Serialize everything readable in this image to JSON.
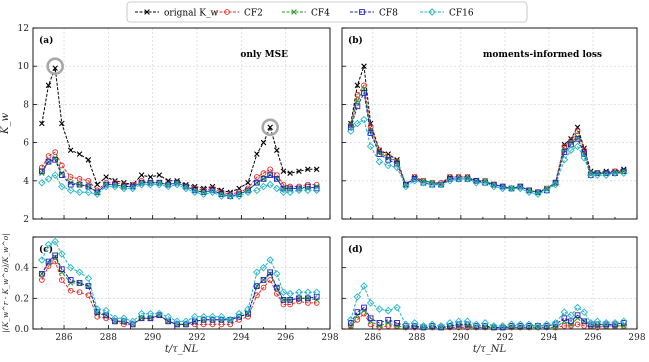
{
  "chart_data": {
    "type": "line",
    "x": [
      285.0,
      285.3,
      285.6,
      285.9,
      286.3,
      286.7,
      287.1,
      287.5,
      287.9,
      288.3,
      288.7,
      289.1,
      289.5,
      289.9,
      290.3,
      290.7,
      291.1,
      291.5,
      291.9,
      292.3,
      292.7,
      293.1,
      293.5,
      293.9,
      294.3,
      294.7,
      295.0,
      295.3,
      295.6,
      295.9,
      296.2,
      296.6,
      297.0,
      297.4
    ],
    "legend": {
      "placement": "top-center",
      "entries": [
        {
          "key": "orig",
          "label": "orignal K_w",
          "color": "#000000",
          "marker": "x"
        },
        {
          "key": "cf2",
          "label": "CF2",
          "color": "#e32b26",
          "marker": "o"
        },
        {
          "key": "cf4",
          "label": "CF4",
          "color": "#2a9a2a",
          "marker": "x"
        },
        {
          "key": "cf8",
          "label": "CF8",
          "color": "#1f1fbf",
          "marker": "s"
        },
        {
          "key": "cf16",
          "label": "CF16",
          "color": "#22b5c4",
          "marker": "D"
        }
      ]
    },
    "grid": true,
    "panels": [
      {
        "id": "a",
        "tag": "(a)",
        "annotation": "only MSE",
        "ylabel": "K_w",
        "ylim": [
          2,
          12
        ],
        "yticks": [
          2,
          4,
          6,
          8,
          10,
          12
        ],
        "xlim": [
          284.6,
          298
        ],
        "xticks": [],
        "series": {
          "orig": [
            7.0,
            9.0,
            9.9,
            7.0,
            5.6,
            5.4,
            5.1,
            3.8,
            4.2,
            4.0,
            3.9,
            3.8,
            4.3,
            4.2,
            4.3,
            4.0,
            4.0,
            3.8,
            3.7,
            3.6,
            3.7,
            3.5,
            3.4,
            3.6,
            3.9,
            5.4,
            6.0,
            6.8,
            5.6,
            4.5,
            4.4,
            4.5,
            4.6,
            4.6
          ],
          "cf2": [
            4.7,
            5.3,
            5.5,
            4.8,
            4.2,
            4.1,
            4.0,
            3.5,
            3.9,
            3.9,
            3.8,
            3.8,
            4.0,
            3.9,
            3.9,
            3.8,
            3.9,
            3.7,
            3.6,
            3.5,
            3.6,
            3.4,
            3.3,
            3.4,
            3.6,
            4.2,
            4.4,
            4.6,
            4.3,
            3.8,
            3.7,
            3.7,
            3.8,
            3.8
          ],
          "cf4": [
            4.4,
            5.0,
            5.2,
            4.4,
            3.9,
            3.8,
            3.7,
            3.4,
            3.8,
            3.8,
            3.7,
            3.7,
            3.9,
            3.9,
            3.9,
            3.8,
            3.9,
            3.7,
            3.5,
            3.4,
            3.5,
            3.3,
            3.2,
            3.3,
            3.5,
            3.9,
            4.1,
            4.3,
            4.1,
            3.6,
            3.6,
            3.6,
            3.6,
            3.7
          ],
          "cf8": [
            4.5,
            5.0,
            5.1,
            4.3,
            3.8,
            3.8,
            3.7,
            3.4,
            3.8,
            3.8,
            3.7,
            3.7,
            3.9,
            3.9,
            3.9,
            3.8,
            3.9,
            3.7,
            3.5,
            3.4,
            3.5,
            3.3,
            3.2,
            3.3,
            3.5,
            3.9,
            4.1,
            4.3,
            4.1,
            3.6,
            3.6,
            3.6,
            3.7,
            3.6
          ],
          "cf16": [
            3.9,
            4.1,
            4.3,
            3.7,
            3.5,
            3.4,
            3.4,
            3.3,
            3.7,
            3.7,
            3.6,
            3.6,
            3.8,
            3.8,
            3.8,
            3.7,
            3.8,
            3.6,
            3.4,
            3.3,
            3.4,
            3.2,
            3.2,
            3.2,
            3.4,
            3.5,
            3.7,
            3.8,
            3.6,
            3.4,
            3.4,
            3.5,
            3.5,
            3.5
          ]
        },
        "circles": [
          {
            "x": 285.6,
            "y": 10.0
          },
          {
            "x": 295.3,
            "y": 6.8
          }
        ]
      },
      {
        "id": "b",
        "tag": "(b)",
        "annotation": "moments-informed loss",
        "ylabel": "",
        "ylim": [
          2,
          12
        ],
        "yticks": [],
        "xlim": [
          284.6,
          298
        ],
        "xticks": [],
        "series": {
          "orig": [
            7.0,
            9.0,
            10.0,
            7.0,
            5.6,
            5.4,
            5.1,
            3.8,
            4.2,
            4.0,
            3.9,
            3.8,
            4.2,
            4.2,
            4.2,
            4.0,
            4.0,
            3.8,
            3.7,
            3.6,
            3.7,
            3.5,
            3.4,
            3.6,
            3.9,
            5.9,
            6.2,
            6.8,
            5.7,
            4.5,
            4.4,
            4.5,
            4.5,
            4.6
          ],
          "cf2": [
            6.9,
            8.5,
            9.0,
            6.8,
            5.6,
            5.3,
            5.0,
            3.8,
            4.2,
            4.0,
            3.9,
            3.9,
            4.2,
            4.2,
            4.2,
            4.0,
            4.0,
            3.8,
            3.7,
            3.6,
            3.7,
            3.5,
            3.4,
            3.6,
            3.9,
            5.8,
            6.1,
            6.6,
            5.6,
            4.4,
            4.4,
            4.4,
            4.5,
            4.5
          ],
          "cf4": [
            6.9,
            8.2,
            8.8,
            6.6,
            5.5,
            5.2,
            5.0,
            3.8,
            4.1,
            4.0,
            3.9,
            3.8,
            4.1,
            4.1,
            4.1,
            4.0,
            4.0,
            3.8,
            3.7,
            3.6,
            3.7,
            3.5,
            3.4,
            3.6,
            3.9,
            5.6,
            6.0,
            6.3,
            5.4,
            4.4,
            4.4,
            4.4,
            4.4,
            4.5
          ],
          "cf8": [
            6.8,
            7.9,
            8.6,
            6.5,
            5.4,
            5.1,
            4.9,
            3.8,
            4.1,
            3.9,
            3.8,
            3.8,
            4.1,
            4.1,
            4.1,
            4.0,
            3.9,
            3.8,
            3.7,
            3.6,
            3.7,
            3.5,
            3.4,
            3.5,
            3.9,
            5.5,
            5.9,
            6.2,
            5.4,
            4.3,
            4.4,
            4.4,
            4.4,
            4.5
          ],
          "cf16": [
            6.6,
            7.0,
            7.2,
            5.8,
            5.0,
            4.8,
            4.7,
            3.7,
            4.0,
            3.9,
            3.8,
            3.8,
            4.0,
            4.1,
            4.1,
            3.9,
            3.9,
            3.7,
            3.6,
            3.6,
            3.6,
            3.4,
            3.3,
            3.5,
            3.8,
            5.1,
            5.6,
            5.8,
            5.2,
            4.3,
            4.3,
            4.3,
            4.4,
            4.4
          ]
        },
        "circles": []
      },
      {
        "id": "c",
        "tag": "(c)",
        "ylabel": "|(K_w^r - K_w^o)/K_w^o|",
        "ylim": [
          0,
          0.6
        ],
        "yticks": [
          0.0,
          0.2,
          0.4
        ],
        "xlabel": "t/τ_NL",
        "xlim": [
          284.6,
          298
        ],
        "xticks": [
          286,
          288,
          290,
          292,
          294,
          296,
          298
        ],
        "series": {
          "cf2": [
            0.32,
            0.41,
            0.44,
            0.32,
            0.25,
            0.24,
            0.22,
            0.08,
            0.07,
            0.05,
            0.03,
            0.03,
            0.07,
            0.07,
            0.09,
            0.05,
            0.03,
            0.03,
            0.03,
            0.03,
            0.03,
            0.03,
            0.03,
            0.06,
            0.08,
            0.22,
            0.27,
            0.32,
            0.23,
            0.16,
            0.16,
            0.18,
            0.17,
            0.17
          ],
          "cf4": [
            0.36,
            0.43,
            0.47,
            0.37,
            0.3,
            0.3,
            0.28,
            0.1,
            0.09,
            0.05,
            0.05,
            0.03,
            0.07,
            0.07,
            0.09,
            0.05,
            0.03,
            0.03,
            0.05,
            0.06,
            0.06,
            0.06,
            0.06,
            0.08,
            0.1,
            0.28,
            0.32,
            0.36,
            0.27,
            0.19,
            0.19,
            0.2,
            0.2,
            0.19
          ],
          "cf8": [
            0.36,
            0.44,
            0.48,
            0.39,
            0.32,
            0.3,
            0.28,
            0.11,
            0.09,
            0.05,
            0.05,
            0.03,
            0.07,
            0.07,
            0.09,
            0.05,
            0.03,
            0.03,
            0.05,
            0.06,
            0.06,
            0.06,
            0.06,
            0.08,
            0.1,
            0.28,
            0.32,
            0.37,
            0.27,
            0.19,
            0.19,
            0.2,
            0.2,
            0.21
          ],
          "cf16": [
            0.45,
            0.55,
            0.57,
            0.49,
            0.4,
            0.37,
            0.33,
            0.13,
            0.12,
            0.07,
            0.07,
            0.05,
            0.1,
            0.1,
            0.1,
            0.08,
            0.05,
            0.05,
            0.08,
            0.08,
            0.08,
            0.08,
            0.06,
            0.1,
            0.13,
            0.37,
            0.4,
            0.45,
            0.36,
            0.24,
            0.23,
            0.24,
            0.24,
            0.24
          ]
        }
      },
      {
        "id": "d",
        "tag": "(d)",
        "ylabel": "",
        "ylim": [
          0,
          0.6
        ],
        "yticks": [],
        "xlabel": "t/τ_NL",
        "xlim": [
          284.6,
          298
        ],
        "xticks": [
          286,
          288,
          290,
          292,
          294,
          296,
          298
        ],
        "series": {
          "cf2": [
            0.02,
            0.06,
            0.1,
            0.03,
            0.01,
            0.02,
            0.02,
            0.01,
            0.01,
            0.01,
            0.01,
            0.01,
            0.01,
            0.01,
            0.01,
            0.01,
            0.01,
            0.01,
            0.01,
            0.01,
            0.01,
            0.01,
            0.01,
            0.01,
            0.01,
            0.02,
            0.02,
            0.03,
            0.02,
            0.02,
            0.01,
            0.02,
            0.02,
            0.02
          ],
          "cf4": [
            0.02,
            0.09,
            0.12,
            0.05,
            0.02,
            0.04,
            0.02,
            0.01,
            0.02,
            0.01,
            0.01,
            0.01,
            0.02,
            0.02,
            0.02,
            0.01,
            0.01,
            0.01,
            0.01,
            0.01,
            0.01,
            0.01,
            0.01,
            0.01,
            0.01,
            0.05,
            0.03,
            0.07,
            0.05,
            0.02,
            0.02,
            0.02,
            0.02,
            0.02
          ],
          "cf8": [
            0.04,
            0.11,
            0.14,
            0.07,
            0.04,
            0.06,
            0.04,
            0.02,
            0.02,
            0.01,
            0.02,
            0.01,
            0.02,
            0.03,
            0.03,
            0.02,
            0.02,
            0.01,
            0.01,
            0.02,
            0.02,
            0.02,
            0.02,
            0.02,
            0.03,
            0.07,
            0.05,
            0.09,
            0.05,
            0.03,
            0.03,
            0.03,
            0.03,
            0.04
          ],
          "cf16": [
            0.06,
            0.21,
            0.28,
            0.17,
            0.13,
            0.12,
            0.14,
            0.03,
            0.04,
            0.02,
            0.03,
            0.02,
            0.04,
            0.05,
            0.05,
            0.03,
            0.04,
            0.02,
            0.02,
            0.03,
            0.03,
            0.03,
            0.02,
            0.03,
            0.04,
            0.11,
            0.09,
            0.14,
            0.11,
            0.04,
            0.05,
            0.04,
            0.04,
            0.05
          ]
        }
      }
    ]
  }
}
